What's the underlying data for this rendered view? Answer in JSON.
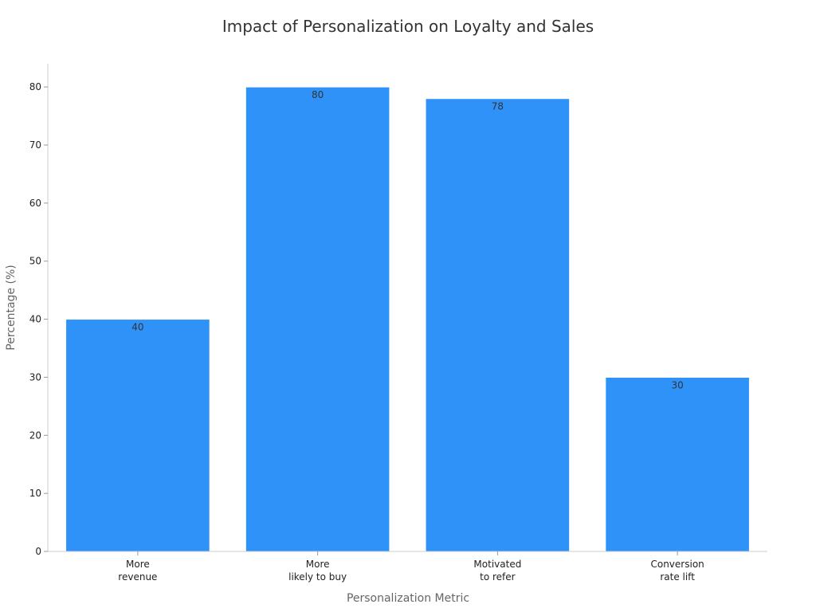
{
  "chart_data": {
    "type": "bar",
    "title": "Impact of Personalization on Loyalty and Sales",
    "xlabel": "Personalization Metric",
    "ylabel": "Percentage (%)",
    "categories": [
      [
        "More",
        "revenue"
      ],
      [
        "More",
        "likely to buy"
      ],
      [
        "Motivated",
        "to refer"
      ],
      [
        "Conversion",
        "rate lift"
      ]
    ],
    "values": [
      40,
      80,
      78,
      30
    ],
    "ylim": [
      0,
      84
    ],
    "yticks": [
      0,
      10,
      20,
      30,
      40,
      50,
      60,
      70,
      80
    ],
    "bar_color": "#2f92f8",
    "bar_edge_color": "#ffffff",
    "grid": false,
    "data_labels": true
  }
}
